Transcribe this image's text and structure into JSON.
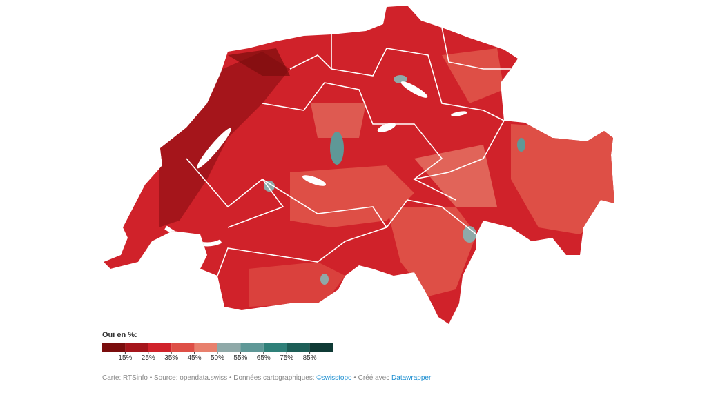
{
  "legend": {
    "title": "Oui en %:",
    "colors": [
      "#7a0d0d",
      "#a5151b",
      "#d0222a",
      "#de4f46",
      "#e8806d",
      "#8fa9a8",
      "#5f9897",
      "#2f8079",
      "#1d5e57",
      "#0f3a35"
    ],
    "labels": [
      "15%",
      "25%",
      "35%",
      "45%",
      "50%",
      "55%",
      "65%",
      "75%",
      "85%"
    ]
  },
  "footer": {
    "text": "Carte: RTSinfo • Source: opendata.swiss • Données cartographiques: ",
    "link1": "©swisstopo",
    "text2": " • Créé avec ",
    "link2": "Datawrapper"
  }
}
